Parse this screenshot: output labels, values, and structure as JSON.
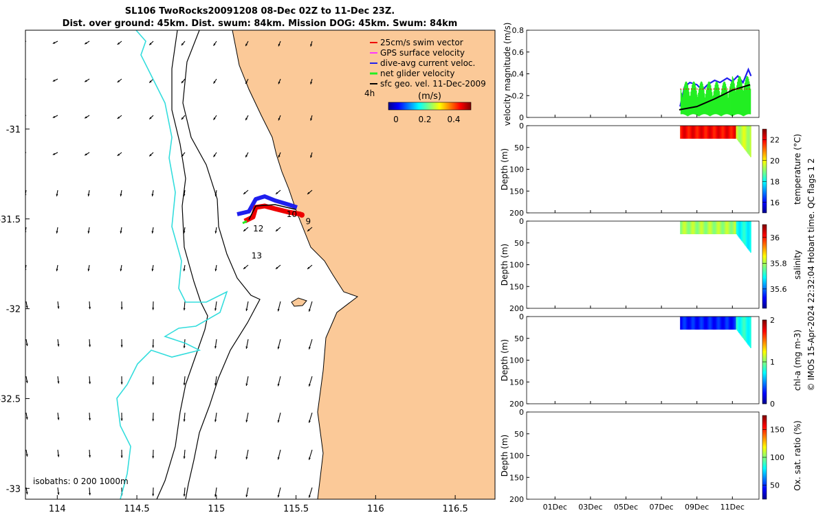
{
  "title": {
    "line1": "SL106 TwoRocks20091208 08-Dec 02Z to 11-Dec 23Z.",
    "line2": "Dist. over ground: 45km. Dist. swum: 84km. Mission DOG: 45km. Swum: 84km"
  },
  "colors": {
    "land": "#fbc998",
    "coast": "#000000",
    "isobath_shelf": "#000000",
    "isobath_deep": "#33dddd",
    "swim_vector": "#ee0000",
    "gps_velocity": "#ff33ff",
    "dive_avg": "#1f1fee",
    "net_glider": "#22ee22",
    "sfc_geo": "#000000"
  },
  "map": {
    "xlim": [
      113.8,
      116.75
    ],
    "ylim": [
      -33.06,
      -30.45
    ],
    "xticks": [
      "114",
      "114.5",
      "115",
      "115.5",
      "116",
      "116.5"
    ],
    "yticks": [
      "-31",
      "-31.5",
      "-32",
      "-32.5",
      "-33"
    ],
    "isobaths_label": "isobaths: 0   200  1000m",
    "track_labels": [
      {
        "text": "9",
        "lon": 115.56,
        "lat": -31.53
      },
      {
        "text": "10",
        "lon": 115.44,
        "lat": -31.49
      },
      {
        "text": "12",
        "lon": 115.23,
        "lat": -31.57
      },
      {
        "text": "13",
        "lon": 115.22,
        "lat": -31.72
      }
    ]
  },
  "legend": {
    "items": [
      {
        "label": "25cm/s swim vector",
        "color_key": "swim_vector"
      },
      {
        "label": "GPS surface velocity",
        "color_key": "gps_velocity"
      },
      {
        "label": "dive-avg current veloc.",
        "color_key": "dive_avg"
      },
      {
        "label": "net glider velocity",
        "color_key": "net_glider"
      },
      {
        "label": "sfc geo. vel. 11-Dec-2009",
        "color_key": "sfc_geo"
      }
    ],
    "time_scale": "4h",
    "colorbar_unit": "(m/s)",
    "colorbar_ticks": [
      "0",
      "0.2",
      "0.4"
    ]
  },
  "chart_data": [
    {
      "type": "line",
      "ylabel": "velocity magnitude (m/s)",
      "ylim": [
        0,
        0.8
      ],
      "yticks": [
        "0",
        "0.2",
        "0.4",
        "0.6",
        "0.8"
      ],
      "x_unit": "day of Dec 2009",
      "xlim": [
        -0.6,
        12.5
      ],
      "series": [
        {
          "color_key": "dive_avg",
          "x": [
            8.05,
            8.3,
            8.6,
            9.0,
            9.3,
            9.6,
            10.0,
            10.3,
            10.7,
            11.0,
            11.3,
            11.6,
            11.9,
            12.05
          ],
          "y": [
            0.1,
            0.28,
            0.32,
            0.3,
            0.25,
            0.3,
            0.34,
            0.32,
            0.36,
            0.33,
            0.38,
            0.32,
            0.44,
            0.38
          ]
        },
        {
          "color_key": "net_glider",
          "x": [
            8.1,
            8.4,
            8.8,
            9.2,
            9.6,
            10.0,
            10.4,
            10.8,
            11.2,
            11.6,
            12.0
          ],
          "y": [
            0.18,
            0.28,
            0.3,
            0.2,
            0.25,
            0.3,
            0.28,
            0.35,
            0.25,
            0.3,
            0.28
          ]
        },
        {
          "color_key": "sfc_geo",
          "x": [
            8.0,
            9.0,
            10.0,
            11.0,
            12.0
          ],
          "y": [
            0.07,
            0.1,
            0.17,
            0.25,
            0.3
          ]
        },
        {
          "color_key": "swim_vector",
          "x": [
            8.05,
            12.05
          ],
          "y": [
            0.26,
            0.26
          ]
        }
      ]
    },
    {
      "type": "heatmap",
      "ylabel": "Depth (m)",
      "clabel": "temperature (°C)",
      "ylim": [
        200,
        0
      ],
      "yticks": [
        "0",
        "50",
        "100",
        "150",
        "200"
      ],
      "cticks": [
        "16",
        "18",
        "20",
        "22"
      ],
      "clim": [
        15,
        23
      ],
      "x_range": [
        8.05,
        12.05
      ],
      "depth_range": [
        0,
        30
      ],
      "near_shore_max_depth": 75,
      "typical_value": 22,
      "near_shore_value": 19.5
    },
    {
      "type": "heatmap",
      "ylabel": "Depth (m)",
      "clabel": "salinity",
      "ylim": [
        200,
        0
      ],
      "yticks": [
        "0",
        "50",
        "100",
        "150",
        "200"
      ],
      "cticks": [
        "35.6",
        "35.8",
        "36"
      ],
      "clim": [
        35.45,
        36.1
      ],
      "x_range": [
        8.05,
        12.05
      ],
      "depth_range": [
        0,
        30
      ],
      "near_shore_max_depth": 75,
      "typical_value": 35.8,
      "near_shore_value": 35.7
    },
    {
      "type": "heatmap",
      "ylabel": "Depth (m)",
      "clabel": "chl-a (mg m-3)",
      "ylim": [
        200,
        0
      ],
      "yticks": [
        "0",
        "50",
        "100",
        "150",
        "200"
      ],
      "cticks": [
        "0",
        "1",
        "2"
      ],
      "clim": [
        0,
        2
      ],
      "x_range": [
        8.05,
        12.05
      ],
      "depth_range": [
        0,
        30
      ],
      "near_shore_max_depth": 75,
      "typical_value": 0.3,
      "near_shore_value": 0.8
    },
    {
      "type": "heatmap",
      "ylabel": "Depth (m)",
      "clabel": "Ox. sat. ratio (%)",
      "ylim": [
        200,
        0
      ],
      "yticks": [
        "0",
        "50",
        "100",
        "150",
        "200"
      ],
      "cticks": [
        "50",
        "100",
        "150"
      ],
      "clim": [
        25,
        175
      ],
      "empty": true
    }
  ],
  "time_axis": {
    "labels": [
      "01Dec",
      "03Dec",
      "05Dec",
      "07Dec",
      "09Dec",
      "11Dec"
    ],
    "days": [
      1,
      3,
      5,
      7,
      9,
      11
    ]
  },
  "credit": "© IMOS 15-Apr-2024 22:32:04 Hobart time. QC flags 1  2"
}
